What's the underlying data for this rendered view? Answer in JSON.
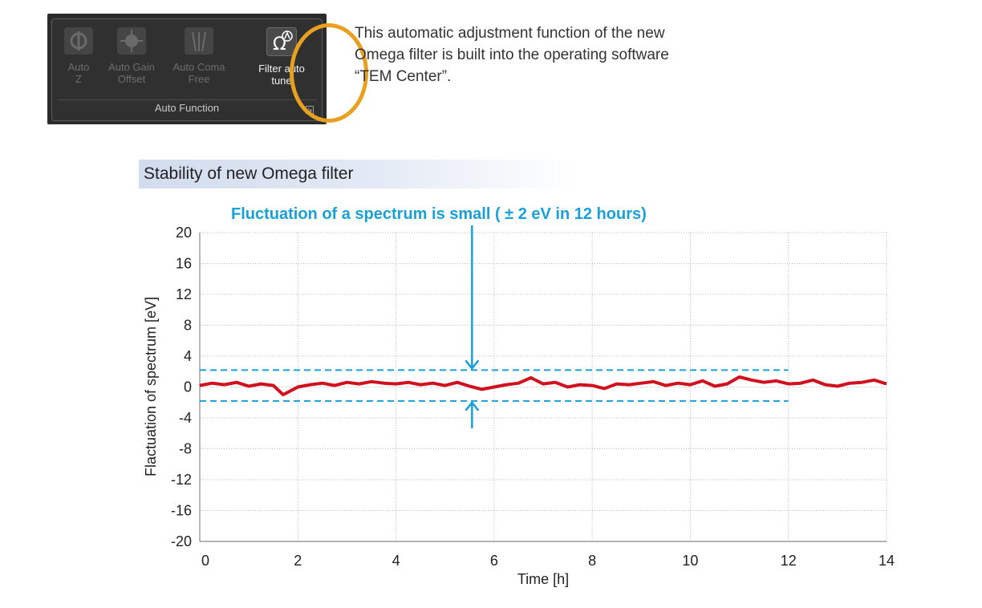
{
  "toolbar": {
    "buttons": [
      {
        "label": "Auto\nZ",
        "icon": "auto-z-icon",
        "active": false
      },
      {
        "label": "Auto Gain\nOffset",
        "icon": "auto-gain-offset-icon",
        "active": false
      },
      {
        "label": "Auto Coma\nFree",
        "icon": "auto-coma-free-icon",
        "active": false
      },
      {
        "label": "Filter auto\ntune",
        "icon": "omega-filter-icon",
        "active": true
      }
    ],
    "group_label": "Auto Function",
    "highlight_color": "#e8a020"
  },
  "description": "This automatic adjustment function of the new Omega filter is built into the operating software “TEM Center”.",
  "chart_title": "Stability of new Omega filter",
  "annotation": "Fluctuation of a spectrum is small ( ± 2 eV in 12 hours)",
  "chart_data": {
    "type": "line",
    "title": "Stability of new Omega filter",
    "xlabel": "Time [h]",
    "ylabel": "Flactuation of spectrum [eV]",
    "xlim": [
      0,
      14
    ],
    "ylim": [
      -20,
      20
    ],
    "xticks": [
      0,
      2,
      4,
      6,
      8,
      10,
      12,
      14
    ],
    "yticks": [
      20,
      16,
      12,
      8,
      4,
      0,
      -4,
      -8,
      -12,
      -16,
      -20
    ],
    "grid": true,
    "series": [
      {
        "color": "#d0101e",
        "x": [
          0,
          0.25,
          0.5,
          0.75,
          1,
          1.25,
          1.5,
          1.7,
          2,
          2.25,
          2.5,
          2.75,
          3,
          3.25,
          3.5,
          3.75,
          4,
          4.25,
          4.5,
          4.75,
          5,
          5.25,
          5.5,
          5.75,
          6,
          6.25,
          6.5,
          6.75,
          7,
          7.25,
          7.5,
          7.75,
          8,
          8.25,
          8.5,
          8.75,
          9,
          9.25,
          9.5,
          9.75,
          10,
          10.25,
          10.5,
          10.75,
          11,
          11.25,
          11.5,
          11.75,
          12,
          12.25,
          12.5,
          12.75,
          13,
          13.25,
          13.5,
          13.75,
          14
        ],
        "y": [
          0.2,
          0.5,
          0.3,
          0.6,
          0.1,
          0.4,
          0.2,
          -1.0,
          0.0,
          0.3,
          0.5,
          0.2,
          0.6,
          0.4,
          0.7,
          0.5,
          0.4,
          0.6,
          0.3,
          0.5,
          0.2,
          0.6,
          0.1,
          -0.3,
          0.0,
          0.3,
          0.5,
          1.2,
          0.4,
          0.6,
          0.0,
          0.3,
          0.2,
          -0.2,
          0.4,
          0.3,
          0.5,
          0.7,
          0.2,
          0.5,
          0.3,
          0.8,
          0.1,
          0.4,
          1.3,
          0.9,
          0.6,
          0.8,
          0.4,
          0.5,
          0.9,
          0.3,
          0.1,
          0.5,
          0.6,
          0.9,
          0.4
        ]
      }
    ],
    "reference_lines": [
      {
        "y": 2.2,
        "x_end": 12,
        "color": "#1aa0d8",
        "style": "dashed"
      },
      {
        "y": -1.8,
        "x_end": 12,
        "color": "#1aa0d8",
        "style": "dashed"
      }
    ],
    "arrow_x": 5.55,
    "annotation_color": "#1aa0d8"
  }
}
